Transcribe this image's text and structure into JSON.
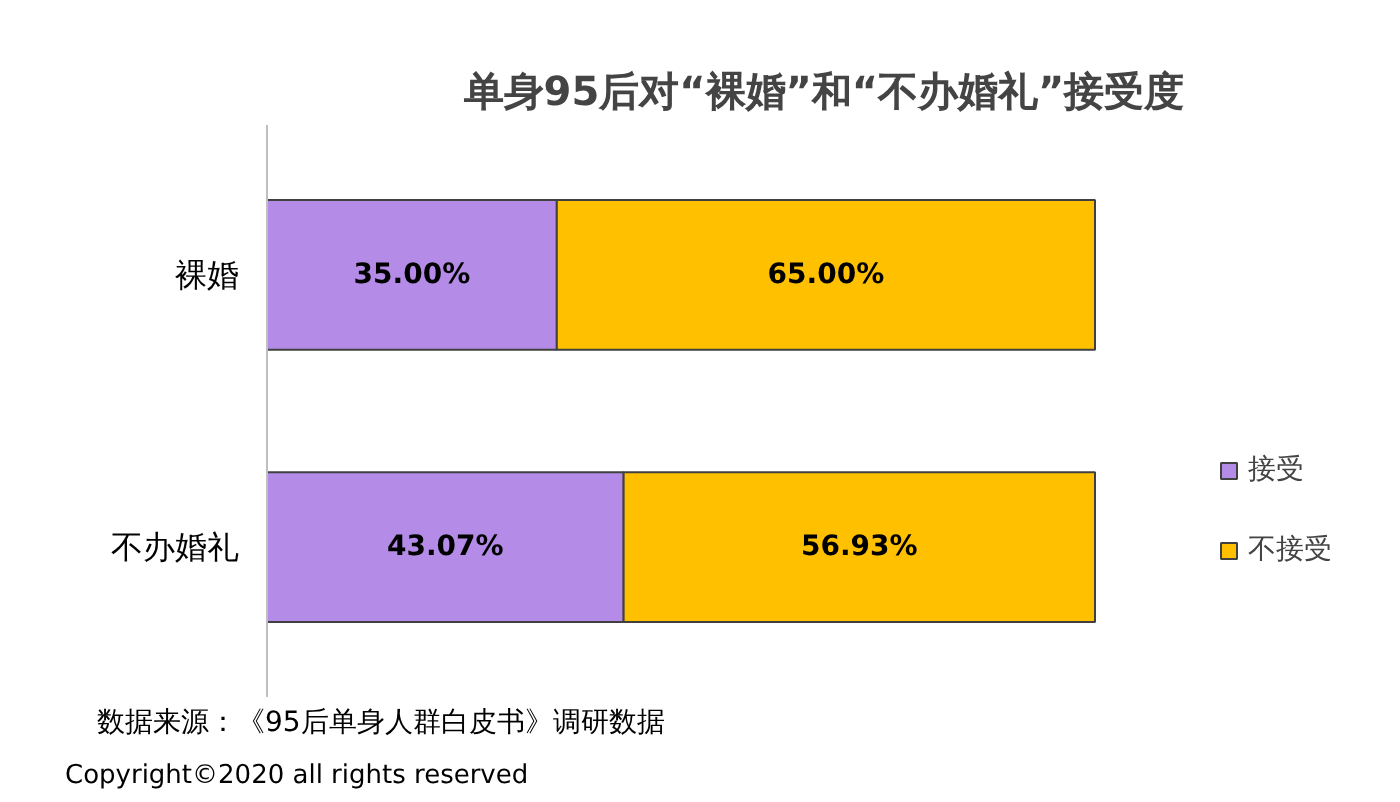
{
  "chart_data": {
    "type": "bar",
    "orientation": "horizontal",
    "stacked": true,
    "title": "单身95后对“裸婚”和“不办婚礼”接受度",
    "categories": [
      "裸婚",
      "不办婚礼"
    ],
    "series": [
      {
        "name": "接受",
        "color": "#b48ce8",
        "values": [
          35.0,
          43.07
        ],
        "value_labels": [
          "35.00%",
          "43.07%"
        ]
      },
      {
        "name": "不接受",
        "color": "#ffc000",
        "values": [
          65.0,
          56.93
        ],
        "value_labels": [
          "65.00%",
          "56.93%"
        ]
      }
    ],
    "legend": "right",
    "grid": false,
    "tick_labels": "y",
    "annotations": [
      "数据来源：《95后单身人群白皮书》调研数据",
      "Copyright©2020 all rights reserved"
    ]
  }
}
